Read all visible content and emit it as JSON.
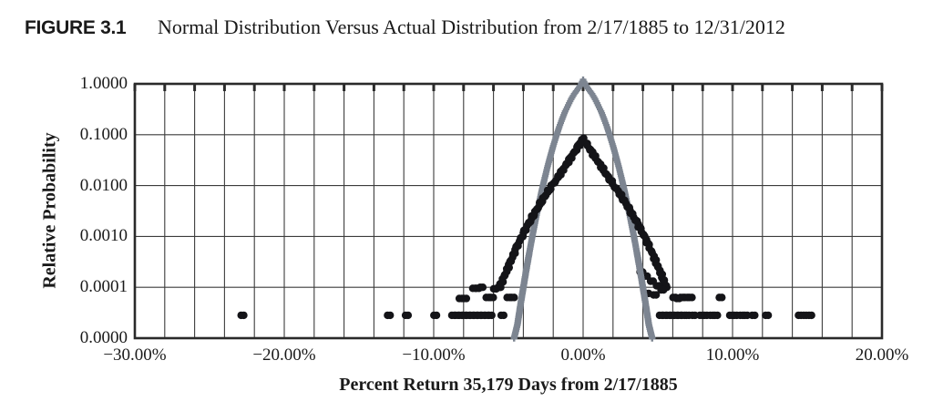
{
  "figure": {
    "label": "FIGURE 3.1",
    "caption": "Normal Distribution Versus Actual Distribution from 2/17/1885 to 12/31/2012"
  },
  "colors": {
    "background": "#ffffff",
    "text": "#1a1a1a",
    "gridline": "#3c3c3c",
    "axis_border": "#2a2a2a",
    "normal_series": "#7d8591",
    "actual_series": "#141418"
  },
  "chart_data": {
    "type": "scatter",
    "title": "Normal Distribution Versus Actual Distribution from 2/17/1885 to 12/31/2012",
    "xlabel": "Percent Return 35,179 Days from 2/17/1885",
    "ylabel": "Relative Probability",
    "xlim": [
      -30,
      20
    ],
    "ylim_logp": [
      0,
      -5
    ],
    "grid_x_step": 2,
    "grid": true,
    "legend_position": "none",
    "x_tick_values": [
      -30,
      -20,
      -10,
      0,
      10,
      20
    ],
    "x_tick_labels": [
      "−30.00%",
      "−20.00%",
      "−10.00%",
      "0.00%",
      "10.00%",
      "20.00%"
    ],
    "y_tick_logp": [
      0,
      -1,
      -2,
      -3,
      -4,
      -5
    ],
    "y_tick_labels": [
      "1.0000",
      "0.1000",
      "0.0100",
      "0.0010",
      "0.0001",
      "0.0000"
    ],
    "series": [
      {
        "name": "Normal Distribution",
        "marker": "plus",
        "color": "#7d8591",
        "spacing": 2.2,
        "points": [
          [
            -4.62,
            -5.0
          ],
          [
            -4.4,
            -4.74
          ],
          [
            -4.2,
            -4.36
          ],
          [
            -4.0,
            -4.0
          ],
          [
            -3.8,
            -3.65
          ],
          [
            -3.6,
            -3.32
          ],
          [
            -3.4,
            -3.0
          ],
          [
            -3.2,
            -2.7
          ],
          [
            -3.0,
            -2.42
          ],
          [
            -2.8,
            -2.14
          ],
          [
            -2.6,
            -1.89
          ],
          [
            -2.4,
            -1.65
          ],
          [
            -2.2,
            -1.43
          ],
          [
            -2.0,
            -1.22
          ],
          [
            -1.8,
            -1.03
          ],
          [
            -1.6,
            -0.85
          ],
          [
            -1.4,
            -0.69
          ],
          [
            -1.2,
            -0.54
          ],
          [
            -1.0,
            -0.42
          ],
          [
            -0.8,
            -0.3
          ],
          [
            -0.6,
            -0.2
          ],
          [
            -0.4,
            -0.12
          ],
          [
            -0.2,
            -0.04
          ],
          [
            0.0,
            0.08
          ],
          [
            0.2,
            -0.04
          ],
          [
            0.4,
            -0.12
          ],
          [
            0.6,
            -0.2
          ],
          [
            0.8,
            -0.3
          ],
          [
            1.0,
            -0.42
          ],
          [
            1.2,
            -0.54
          ],
          [
            1.4,
            -0.69
          ],
          [
            1.6,
            -0.85
          ],
          [
            1.8,
            -1.03
          ],
          [
            2.0,
            -1.22
          ],
          [
            2.2,
            -1.43
          ],
          [
            2.4,
            -1.65
          ],
          [
            2.6,
            -1.89
          ],
          [
            2.8,
            -2.14
          ],
          [
            3.0,
            -2.42
          ],
          [
            3.2,
            -2.7
          ],
          [
            3.4,
            -3.0
          ],
          [
            3.6,
            -3.32
          ],
          [
            3.8,
            -3.65
          ],
          [
            4.0,
            -4.0
          ],
          [
            4.2,
            -4.36
          ],
          [
            4.4,
            -4.74
          ],
          [
            4.62,
            -5.0
          ]
        ],
        "outliers": []
      },
      {
        "name": "Actual Distribution",
        "marker": "circle",
        "color": "#141418",
        "spacing": 2.3,
        "points": [
          [
            -5.6,
            -4.0
          ],
          [
            -5.4,
            -3.87
          ],
          [
            -5.2,
            -3.73
          ],
          [
            -5.0,
            -3.59
          ],
          [
            -4.8,
            -3.45
          ],
          [
            -4.6,
            -3.31
          ],
          [
            -4.4,
            -3.18
          ],
          [
            -4.2,
            -3.06
          ],
          [
            -4.0,
            -2.94
          ],
          [
            -3.8,
            -2.83
          ],
          [
            -3.6,
            -2.72
          ],
          [
            -3.4,
            -2.62
          ],
          [
            -3.2,
            -2.52
          ],
          [
            -3.0,
            -2.42
          ],
          [
            -2.8,
            -2.32
          ],
          [
            -2.6,
            -2.23
          ],
          [
            -2.4,
            -2.14
          ],
          [
            -2.2,
            -2.05
          ],
          [
            -2.0,
            -1.97
          ],
          [
            -1.8,
            -1.89
          ],
          [
            -1.6,
            -1.8
          ],
          [
            -1.4,
            -1.71
          ],
          [
            -1.2,
            -1.62
          ],
          [
            -1.0,
            -1.53
          ],
          [
            -0.8,
            -1.44
          ],
          [
            -0.6,
            -1.35
          ],
          [
            -0.4,
            -1.26
          ],
          [
            -0.2,
            -1.16
          ],
          [
            0.0,
            -1.08
          ],
          [
            0.2,
            -1.16
          ],
          [
            0.4,
            -1.26
          ],
          [
            0.6,
            -1.35
          ],
          [
            0.8,
            -1.44
          ],
          [
            1.0,
            -1.53
          ],
          [
            1.2,
            -1.62
          ],
          [
            1.4,
            -1.71
          ],
          [
            1.6,
            -1.8
          ],
          [
            1.8,
            -1.89
          ],
          [
            2.0,
            -1.97
          ],
          [
            2.2,
            -2.05
          ],
          [
            2.4,
            -2.14
          ],
          [
            2.6,
            -2.23
          ],
          [
            2.8,
            -2.32
          ],
          [
            3.0,
            -2.42
          ],
          [
            3.2,
            -2.52
          ],
          [
            3.4,
            -2.62
          ],
          [
            3.6,
            -2.72
          ],
          [
            3.8,
            -2.83
          ],
          [
            4.0,
            -2.94
          ],
          [
            4.2,
            -3.06
          ],
          [
            4.4,
            -3.18
          ],
          [
            4.6,
            -3.31
          ],
          [
            4.8,
            -3.45
          ],
          [
            5.0,
            -3.59
          ],
          [
            5.2,
            -3.73
          ],
          [
            5.4,
            -3.87
          ],
          [
            5.6,
            -4.0
          ]
        ],
        "outliers": [
          [
            -22.8,
            -4.55
          ],
          [
            -13.0,
            -4.55
          ],
          [
            -11.8,
            -4.55
          ],
          [
            -9.9,
            -4.55
          ],
          [
            -8.7,
            -4.55
          ],
          [
            -8.45,
            -4.55
          ],
          [
            -8.2,
            -4.55
          ],
          [
            -7.95,
            -4.55
          ],
          [
            -7.7,
            -4.55
          ],
          [
            -7.45,
            -4.55
          ],
          [
            -7.2,
            -4.55
          ],
          [
            -6.95,
            -4.55
          ],
          [
            -6.7,
            -4.55
          ],
          [
            -6.45,
            -4.55
          ],
          [
            -6.2,
            -4.55
          ],
          [
            -5.4,
            -4.55
          ],
          [
            -8.2,
            -4.22
          ],
          [
            -7.9,
            -4.22
          ],
          [
            -6.4,
            -4.2
          ],
          [
            -6.1,
            -4.2
          ],
          [
            -5.0,
            -4.2
          ],
          [
            -4.7,
            -4.2
          ],
          [
            -7.3,
            -4.02
          ],
          [
            -7.05,
            -4.02
          ],
          [
            -6.8,
            -4.0
          ],
          [
            -5.9,
            -4.03
          ],
          [
            -5.6,
            -4.0
          ],
          [
            3.9,
            -3.7
          ],
          [
            4.2,
            -3.78
          ],
          [
            4.6,
            -3.88
          ],
          [
            5.0,
            -3.97
          ],
          [
            5.3,
            -4.05
          ],
          [
            4.3,
            -4.12
          ],
          [
            4.8,
            -4.15
          ],
          [
            6.1,
            -4.2
          ],
          [
            6.35,
            -4.22
          ],
          [
            6.6,
            -4.2
          ],
          [
            6.9,
            -4.2
          ],
          [
            7.2,
            -4.2
          ],
          [
            9.2,
            -4.2
          ],
          [
            5.2,
            -4.55
          ],
          [
            5.45,
            -4.55
          ],
          [
            5.7,
            -4.55
          ],
          [
            5.95,
            -4.55
          ],
          [
            6.2,
            -4.55
          ],
          [
            6.45,
            -4.55
          ],
          [
            6.7,
            -4.55
          ],
          [
            7.0,
            -4.55
          ],
          [
            7.4,
            -4.55
          ],
          [
            7.9,
            -4.55
          ],
          [
            8.2,
            -4.55
          ],
          [
            8.6,
            -4.55
          ],
          [
            8.9,
            -4.55
          ],
          [
            9.9,
            -4.55
          ],
          [
            10.2,
            -4.55
          ],
          [
            10.6,
            -4.55
          ],
          [
            10.9,
            -4.55
          ],
          [
            11.4,
            -4.55
          ],
          [
            12.3,
            -4.55
          ],
          [
            14.5,
            -4.55
          ],
          [
            14.85,
            -4.55
          ],
          [
            15.2,
            -4.55
          ]
        ]
      }
    ]
  }
}
